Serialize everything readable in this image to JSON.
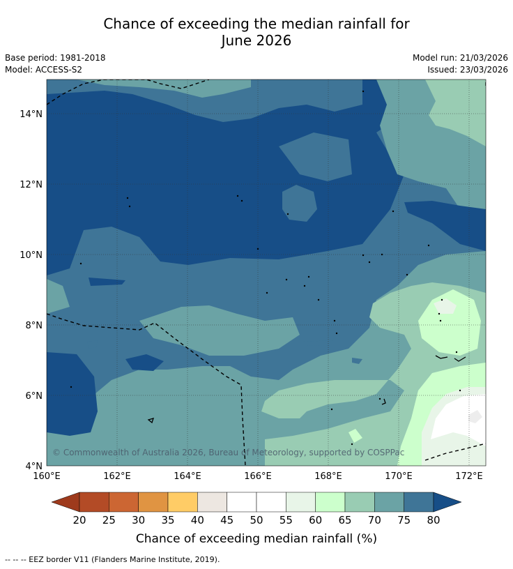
{
  "title_line1": "Chance of exceeding the median rainfall for",
  "title_line2": "June 2026",
  "base_period": "Base period: 1981-2018",
  "model": "Model: ACCESS-S2",
  "model_run": "Model run: 21/03/2026",
  "issued": "Issued: 23/03/2026",
  "x_ticks": [
    "160°E",
    "162°E",
    "164°E",
    "166°E",
    "168°E",
    "170°E",
    "172°E"
  ],
  "y_ticks": [
    "14°N",
    "12°N",
    "10°N",
    "8°N",
    "6°N",
    "4°N"
  ],
  "copyright": "© Commonwealth of Australia 2026, Bureau of Meteorology, supported by COSPPac",
  "colorbar": {
    "labels": [
      "20",
      "25",
      "30",
      "35",
      "40",
      "45",
      "50",
      "55",
      "60",
      "65",
      "70",
      "75",
      "80"
    ],
    "colors": [
      "#9e3a1c",
      "#b34b26",
      "#cc6633",
      "#e09442",
      "#ffcc66",
      "#ede7e1",
      "#ffffff",
      "#ffffff",
      "#e8f5e8",
      "#ccffcc",
      "#99ccb3",
      "#6ba3a5",
      "#3f7597",
      "#174e87"
    ],
    "title": "Chance of exceeding median rainfall (%)"
  },
  "footer": "-- -- -- EEZ border V11 (Flanders Marine Institute, 2019)."
}
